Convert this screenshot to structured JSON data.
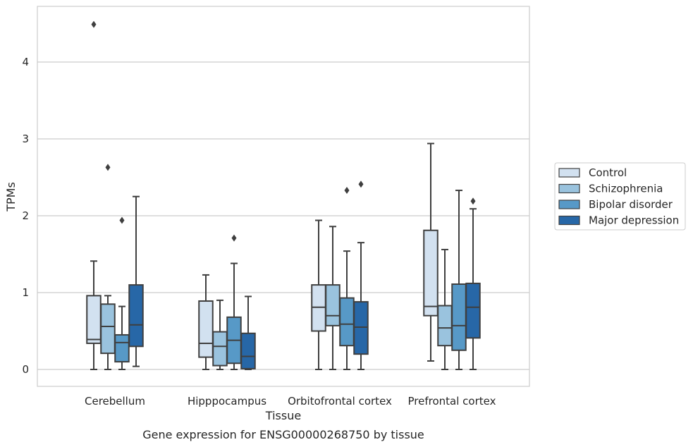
{
  "chart_data": {
    "type": "box",
    "title": "",
    "caption": "Gene expression for ENSG00000268750 by tissue",
    "xlabel": "Tissue",
    "ylabel": "TPMs",
    "ylim": [
      -0.22,
      4.7
    ],
    "yticks": [
      0,
      1,
      2,
      3,
      4
    ],
    "grid": "horizontal",
    "legend_position": "right",
    "categories": [
      "Cerebellum",
      "Hipppocampus",
      "Orbitofrontal cortex",
      "Prefrontal cortex"
    ],
    "series": [
      {
        "name": "Control",
        "color": "#d2e1f0",
        "boxes": [
          {
            "whisker_low": 0.0,
            "q1": 0.34,
            "median": 0.39,
            "q3": 0.96,
            "whisker_high": 1.41,
            "outliers": [
              4.49
            ]
          },
          {
            "whisker_low": 0.0,
            "q1": 0.16,
            "median": 0.34,
            "q3": 0.89,
            "whisker_high": 1.23,
            "outliers": []
          },
          {
            "whisker_low": 0.0,
            "q1": 0.5,
            "median": 0.81,
            "q3": 1.1,
            "whisker_high": 1.94,
            "outliers": []
          },
          {
            "whisker_low": 0.11,
            "q1": 0.7,
            "median": 0.82,
            "q3": 1.81,
            "whisker_high": 2.94,
            "outliers": []
          }
        ]
      },
      {
        "name": "Schizophrenia",
        "color": "#9ac3de",
        "boxes": [
          {
            "whisker_low": 0.0,
            "q1": 0.21,
            "median": 0.56,
            "q3": 0.85,
            "whisker_high": 0.96,
            "outliers": [
              2.63
            ]
          },
          {
            "whisker_low": 0.0,
            "q1": 0.05,
            "median": 0.3,
            "q3": 0.49,
            "whisker_high": 0.9,
            "outliers": []
          },
          {
            "whisker_low": 0.0,
            "q1": 0.57,
            "median": 0.7,
            "q3": 1.1,
            "whisker_high": 1.86,
            "outliers": []
          },
          {
            "whisker_low": 0.0,
            "q1": 0.31,
            "median": 0.54,
            "q3": 0.83,
            "whisker_high": 1.56,
            "outliers": []
          }
        ]
      },
      {
        "name": "Bipolar disorder",
        "color": "#5799c7",
        "boxes": [
          {
            "whisker_low": 0.0,
            "q1": 0.1,
            "median": 0.35,
            "q3": 0.45,
            "whisker_high": 0.82,
            "outliers": [
              1.94
            ]
          },
          {
            "whisker_low": 0.0,
            "q1": 0.08,
            "median": 0.38,
            "q3": 0.68,
            "whisker_high": 1.38,
            "outliers": [
              1.71
            ]
          },
          {
            "whisker_low": 0.0,
            "q1": 0.31,
            "median": 0.59,
            "q3": 0.93,
            "whisker_high": 1.54,
            "outliers": [
              2.33
            ]
          },
          {
            "whisker_low": 0.0,
            "q1": 0.25,
            "median": 0.57,
            "q3": 1.11,
            "whisker_high": 2.33,
            "outliers": []
          }
        ]
      },
      {
        "name": "Major depression",
        "color": "#2767a7",
        "boxes": [
          {
            "whisker_low": 0.04,
            "q1": 0.3,
            "median": 0.58,
            "q3": 1.1,
            "whisker_high": 2.25,
            "outliers": []
          },
          {
            "whisker_low": 0.0,
            "q1": 0.01,
            "median": 0.17,
            "q3": 0.47,
            "whisker_high": 0.95,
            "outliers": []
          },
          {
            "whisker_low": 0.0,
            "q1": 0.2,
            "median": 0.55,
            "q3": 0.88,
            "whisker_high": 1.65,
            "outliers": [
              2.41
            ]
          },
          {
            "whisker_low": 0.0,
            "q1": 0.41,
            "median": 0.81,
            "q3": 1.12,
            "whisker_high": 2.09,
            "outliers": [
              2.19
            ]
          }
        ]
      }
    ]
  }
}
